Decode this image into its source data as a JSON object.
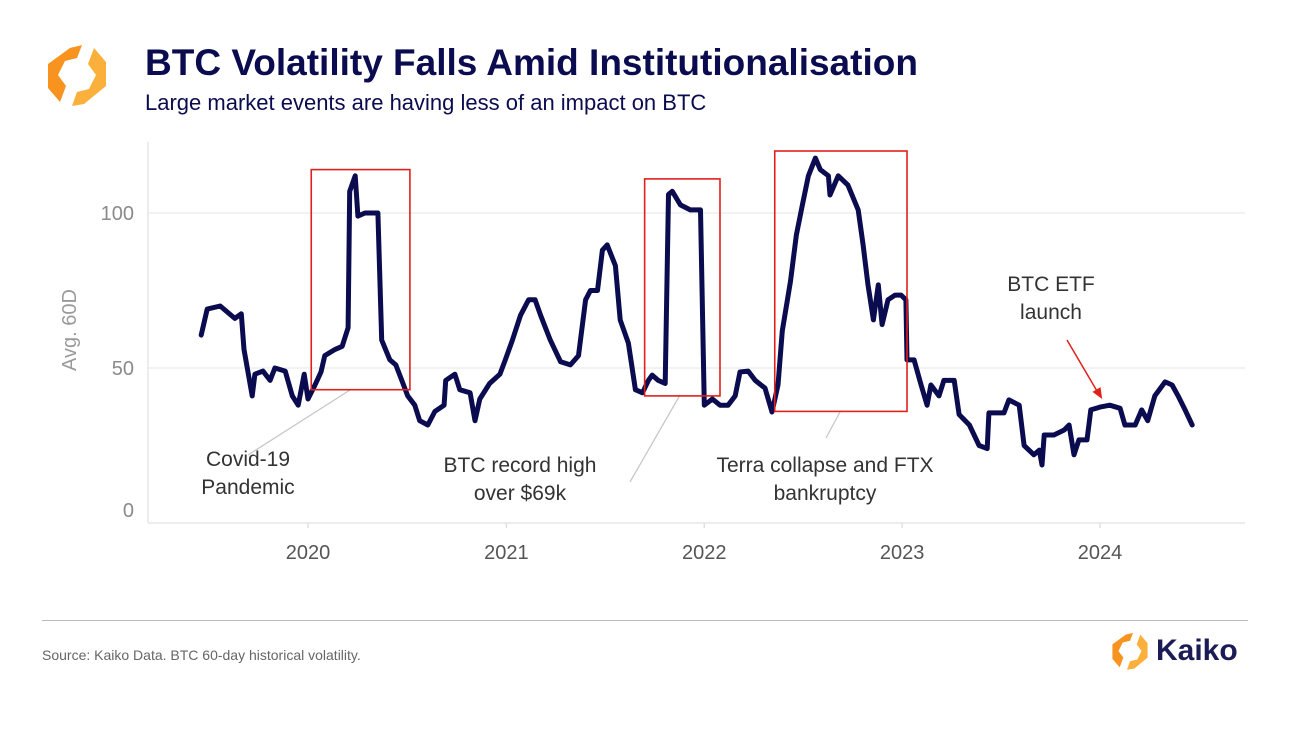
{
  "header": {
    "title": "BTC Volatility Falls Amid Institutionalisation",
    "subtitle": "Large market events are having less of an impact on BTC",
    "logo": "kaiko-hexagon-logo"
  },
  "footer": {
    "source": "Source: Kaiko Data. BTC 60-day historical volatility.",
    "brand": "Kaiko"
  },
  "colors": {
    "line": "#0b0b4f",
    "annotation_box": "#e0201b",
    "arrow": "#e0201b",
    "leader": "#c8c8c8",
    "logo_orange": "#f7931e",
    "logo_yellow": "#fbb03b"
  },
  "chart_data": {
    "type": "line",
    "title": "BTC Volatility Falls Amid Institutionalisation",
    "xlabel": "",
    "ylabel": "Avg. 60D",
    "ylim": [
      0,
      123
    ],
    "xlim": [
      "2019-04-15",
      "2024-08-31"
    ],
    "yticks": [
      0,
      50,
      100
    ],
    "ytick_labels": [
      "0",
      "50",
      "100"
    ],
    "xticks": [
      "2020-01-01",
      "2021-01-01",
      "2022-01-01",
      "2023-01-01",
      "2024-01-01"
    ],
    "xtick_labels": [
      "2020",
      "2021",
      "2022",
      "2023",
      "2024"
    ],
    "grid": "horizontal",
    "legend": "none",
    "series": [
      {
        "points": [
          [
            "2019-06-18",
            60.6
          ],
          [
            "2019-06-29",
            69
          ],
          [
            "2019-07-23",
            70
          ],
          [
            "2019-08-19",
            66
          ],
          [
            "2019-08-31",
            67.5
          ],
          [
            "2019-09-05",
            56
          ],
          [
            "2019-09-20",
            41
          ],
          [
            "2019-09-25",
            48
          ],
          [
            "2019-10-10",
            49
          ],
          [
            "2019-10-23",
            46
          ],
          [
            "2019-11-01",
            50
          ],
          [
            "2019-11-20",
            49
          ],
          [
            "2019-12-03",
            41
          ],
          [
            "2019-12-14",
            38
          ],
          [
            "2019-12-25",
            48
          ],
          [
            "2020-01-01",
            40
          ],
          [
            "2020-01-14",
            44.5
          ],
          [
            "2020-01-25",
            48.7
          ],
          [
            "2020-02-01",
            54
          ],
          [
            "2020-02-20",
            56
          ],
          [
            "2020-03-04",
            57
          ],
          [
            "2020-03-15",
            63
          ],
          [
            "2020-03-18",
            107
          ],
          [
            "2020-03-28",
            112
          ],
          [
            "2020-04-02",
            99
          ],
          [
            "2020-04-15",
            100
          ],
          [
            "2020-05-09",
            100
          ],
          [
            "2020-05-16",
            59
          ],
          [
            "2020-05-31",
            52.6
          ],
          [
            "2020-06-11",
            51
          ],
          [
            "2020-06-22",
            46
          ],
          [
            "2020-07-03",
            41
          ],
          [
            "2020-07-16",
            38
          ],
          [
            "2020-07-25",
            33
          ],
          [
            "2020-08-09",
            31.6
          ],
          [
            "2020-08-22",
            36
          ],
          [
            "2020-09-08",
            38
          ],
          [
            "2020-09-11",
            46
          ],
          [
            "2020-09-28",
            48
          ],
          [
            "2020-10-07",
            43
          ],
          [
            "2020-10-26",
            42
          ],
          [
            "2020-11-04",
            33
          ],
          [
            "2020-11-13",
            40
          ],
          [
            "2020-12-01",
            45
          ],
          [
            "2020-12-20",
            48
          ],
          [
            "2020-12-30",
            52.6
          ],
          [
            "2021-01-12",
            59
          ],
          [
            "2021-01-27",
            67
          ],
          [
            "2021-02-11",
            72
          ],
          [
            "2021-02-23",
            72
          ],
          [
            "2021-03-05",
            67
          ],
          [
            "2021-03-23",
            59
          ],
          [
            "2021-04-11",
            52
          ],
          [
            "2021-04-29",
            51
          ],
          [
            "2021-05-14",
            54
          ],
          [
            "2021-05-27",
            72
          ],
          [
            "2021-06-05",
            75
          ],
          [
            "2021-06-18",
            75
          ],
          [
            "2021-06-27",
            88
          ],
          [
            "2021-07-06",
            89.7
          ],
          [
            "2021-07-21",
            83
          ],
          [
            "2021-07-30",
            65.5
          ],
          [
            "2021-08-14",
            58
          ],
          [
            "2021-08-27",
            43
          ],
          [
            "2021-09-09",
            42
          ],
          [
            "2021-09-20",
            46
          ],
          [
            "2021-09-27",
            47.7
          ],
          [
            "2021-10-08",
            46
          ],
          [
            "2021-10-21",
            45
          ],
          [
            "2021-10-27",
            106
          ],
          [
            "2021-11-03",
            107
          ],
          [
            "2021-11-18",
            102.6
          ],
          [
            "2021-12-06",
            101
          ],
          [
            "2021-12-25",
            101
          ],
          [
            "2022-01-01",
            38
          ],
          [
            "2022-01-16",
            40
          ],
          [
            "2022-01-30",
            38
          ],
          [
            "2022-02-14",
            38
          ],
          [
            "2022-02-27",
            41
          ],
          [
            "2022-03-08",
            48.7
          ],
          [
            "2022-03-23",
            49
          ],
          [
            "2022-04-05",
            46
          ],
          [
            "2022-04-23",
            43.5
          ],
          [
            "2022-05-06",
            35.8
          ],
          [
            "2022-05-17",
            44.5
          ],
          [
            "2022-05-25",
            62
          ],
          [
            "2022-06-09",
            78
          ],
          [
            "2022-06-20",
            93
          ],
          [
            "2022-07-01",
            102.6
          ],
          [
            "2022-07-12",
            112
          ],
          [
            "2022-07-25",
            117.7
          ],
          [
            "2022-08-03",
            114
          ],
          [
            "2022-08-18",
            112
          ],
          [
            "2022-08-21",
            105.8
          ],
          [
            "2022-09-05",
            112
          ],
          [
            "2022-09-23",
            109
          ],
          [
            "2022-10-12",
            101
          ],
          [
            "2022-10-21",
            89.7
          ],
          [
            "2022-10-30",
            76.8
          ],
          [
            "2022-11-09",
            65.5
          ],
          [
            "2022-11-18",
            76.8
          ],
          [
            "2022-11-25",
            64
          ],
          [
            "2022-12-06",
            72
          ],
          [
            "2022-12-19",
            73.5
          ],
          [
            "2022-12-30",
            73.5
          ],
          [
            "2023-01-08",
            72
          ],
          [
            "2023-01-10",
            52.6
          ],
          [
            "2023-01-23",
            52.6
          ],
          [
            "2023-02-05",
            44.5
          ],
          [
            "2023-02-16",
            38
          ],
          [
            "2023-02-23",
            44.5
          ],
          [
            "2023-03-10",
            41
          ],
          [
            "2023-03-19",
            46
          ],
          [
            "2023-04-07",
            46
          ],
          [
            "2023-04-16",
            35
          ],
          [
            "2023-05-05",
            31.6
          ],
          [
            "2023-05-23",
            25
          ],
          [
            "2023-06-07",
            24
          ],
          [
            "2023-06-10",
            35.5
          ],
          [
            "2023-07-08",
            35.5
          ],
          [
            "2023-07-17",
            39.7
          ],
          [
            "2023-08-05",
            38
          ],
          [
            "2023-08-14",
            25
          ],
          [
            "2023-09-01",
            22
          ],
          [
            "2023-09-11",
            23.5
          ],
          [
            "2023-09-16",
            18.7
          ],
          [
            "2023-09-20",
            28.4
          ],
          [
            "2023-10-08",
            28.4
          ],
          [
            "2023-10-27",
            30
          ],
          [
            "2023-11-05",
            31.6
          ],
          [
            "2023-11-14",
            22
          ],
          [
            "2023-11-23",
            26.8
          ],
          [
            "2023-12-08",
            26.8
          ],
          [
            "2023-12-15",
            36.5
          ],
          [
            "2024-01-01",
            37.4
          ],
          [
            "2024-01-19",
            38
          ],
          [
            "2024-02-07",
            37
          ],
          [
            "2024-02-16",
            31.6
          ],
          [
            "2024-03-06",
            31.6
          ],
          [
            "2024-03-18",
            36.5
          ],
          [
            "2024-03-29",
            33
          ],
          [
            "2024-04-11",
            41
          ],
          [
            "2024-04-30",
            45.5
          ],
          [
            "2024-05-13",
            44.5
          ],
          [
            "2024-05-24",
            41
          ],
          [
            "2024-06-06",
            36.5
          ],
          [
            "2024-06-19",
            31.6
          ]
        ]
      }
    ],
    "annotations": [
      {
        "label_lines": [
          "Covid-19",
          "Pandemic"
        ],
        "box": {
          "x": [
            "2020-01-07",
            "2020-07-07"
          ],
          "y": [
            43,
            114
          ]
        }
      },
      {
        "label_lines": [
          "BTC record high",
          "over $69k"
        ],
        "box": {
          "x": [
            "2021-09-13",
            "2022-01-30"
          ],
          "y": [
            41,
            111
          ]
        }
      },
      {
        "label_lines": [
          "Terra collapse and FTX",
          "bankruptcy"
        ],
        "box": {
          "x": [
            "2022-05-11",
            "2023-01-10"
          ],
          "y": [
            36,
            120
          ]
        }
      },
      {
        "label_lines": [
          "BTC ETF",
          "launch"
        ],
        "arrow_to": {
          "x": "2024-01-05",
          "y": 40
        }
      }
    ]
  }
}
